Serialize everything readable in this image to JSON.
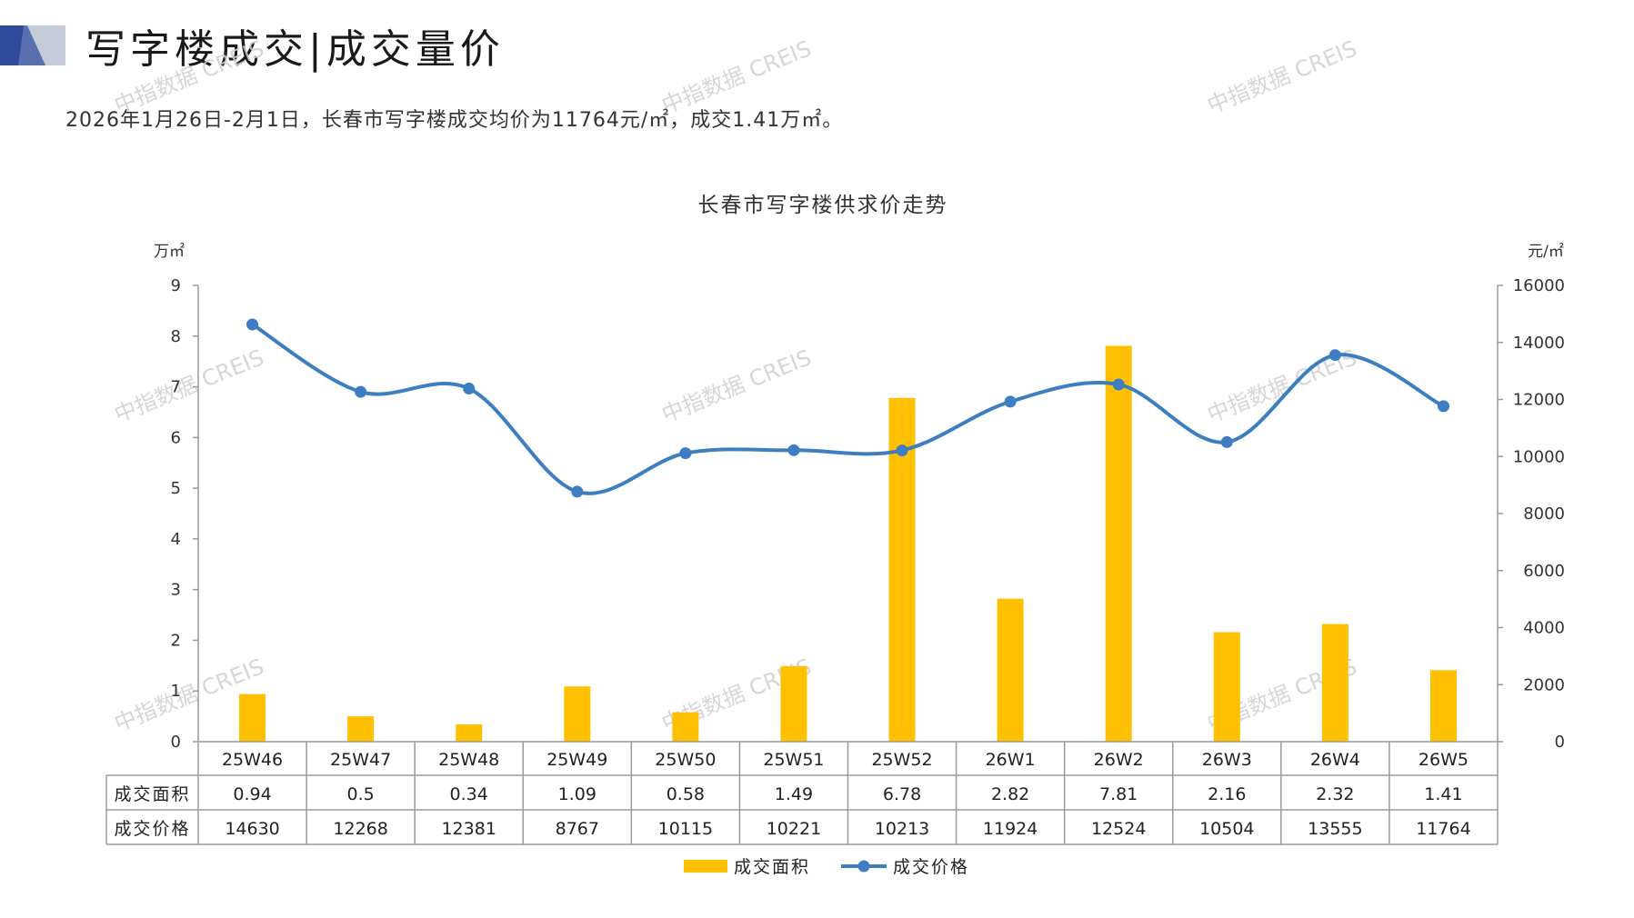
{
  "page": {
    "title": "写字楼成交|成交量价",
    "summary": "2026年1月26日-2月1日，长春市写字楼成交均价为11764元/㎡，成交1.41万㎡。",
    "watermark": "中指数据 CREIS"
  },
  "chart_data": {
    "type": "bar",
    "title": "长春市写字楼供求价走势",
    "y_left_unit": "万㎡",
    "y_right_unit": "元/㎡",
    "y_left_lim": [
      0,
      9
    ],
    "y_left_ticks": [
      "0",
      "1",
      "2",
      "3",
      "4",
      "5",
      "6",
      "7",
      "8",
      "9"
    ],
    "y_right_lim": [
      0,
      16000
    ],
    "y_right_ticks": [
      "0",
      "2000",
      "4000",
      "6000",
      "8000",
      "10000",
      "12000",
      "14000",
      "16000"
    ],
    "categories": [
      "25W46",
      "25W47",
      "25W48",
      "25W49",
      "25W50",
      "25W51",
      "25W52",
      "26W1",
      "26W2",
      "26W3",
      "26W4",
      "26W5"
    ],
    "series": [
      {
        "name": "成交面积",
        "type": "bar",
        "axis": "left",
        "color": "#FFC000",
        "values": [
          0.94,
          0.5,
          0.34,
          1.09,
          0.58,
          1.49,
          6.78,
          2.82,
          7.81,
          2.16,
          2.32,
          1.41
        ],
        "labels": [
          "0.94",
          "0.5",
          "0.34",
          "1.09",
          "0.58",
          "1.49",
          "6.78",
          "2.82",
          "7.81",
          "2.16",
          "2.32",
          "1.41"
        ]
      },
      {
        "name": "成交价格",
        "type": "line",
        "axis": "right",
        "color": "#3D7DC2",
        "values": [
          14630,
          12268,
          12381,
          8767,
          10115,
          10221,
          10213,
          11924,
          12524,
          10504,
          13555,
          11764
        ],
        "labels": [
          "14630",
          "12268",
          "12381",
          "8767",
          "10115",
          "10221",
          "10213",
          "11924",
          "12524",
          "10504",
          "13555",
          "11764"
        ]
      }
    ],
    "grid": false,
    "legend_position": "bottom"
  },
  "colors": {
    "accent_dark": "#2F4A9A",
    "accent_light": "#C5CBD8",
    "bar": "#FFC000",
    "line": "#3D7DC2",
    "axis": "#9A9A9A",
    "watermark": "#CFCFCF"
  }
}
